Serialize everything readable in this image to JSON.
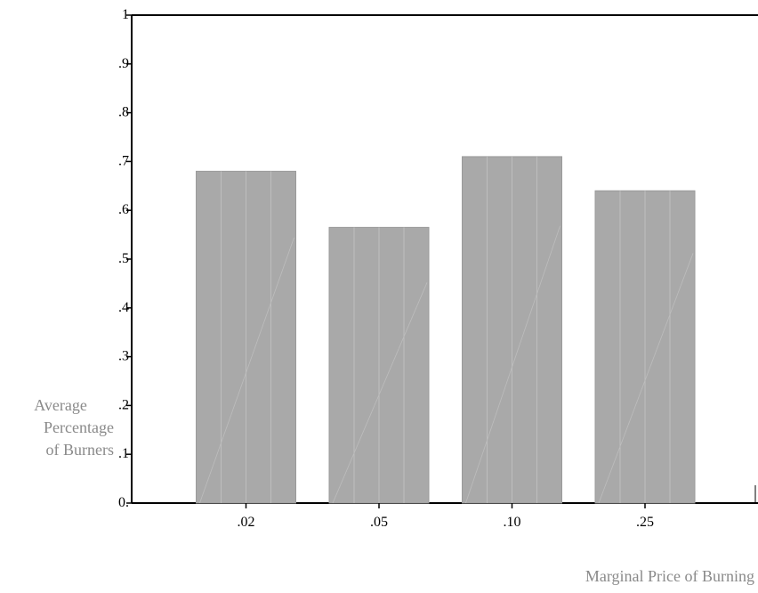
{
  "chart_data": {
    "type": "bar",
    "title": "",
    "xlabel": "Marginal Price of Burning",
    "ylabel": [
      "Average",
      "Percentage",
      "of Burners"
    ],
    "categories": [
      ".02",
      ".05",
      ".10",
      ".25"
    ],
    "values": [
      0.68,
      0.565,
      0.71,
      0.64
    ],
    "ylim": [
      0,
      1
    ],
    "yticks": [
      0,
      0.1,
      0.2,
      0.3,
      0.4,
      0.5,
      0.6,
      0.7,
      0.8,
      0.9,
      1
    ],
    "ytick_labels": [
      "0.",
      ".1",
      ".2",
      ".3",
      ".4",
      ".5",
      ".6",
      ".7",
      ".8",
      ".9",
      "1"
    ],
    "grid": false,
    "legend": "none",
    "colors": {
      "bar": "#a9a9a9",
      "bar_edge": "#9a9a9a",
      "axis": "#000000",
      "label": "#8a8a8a"
    }
  }
}
